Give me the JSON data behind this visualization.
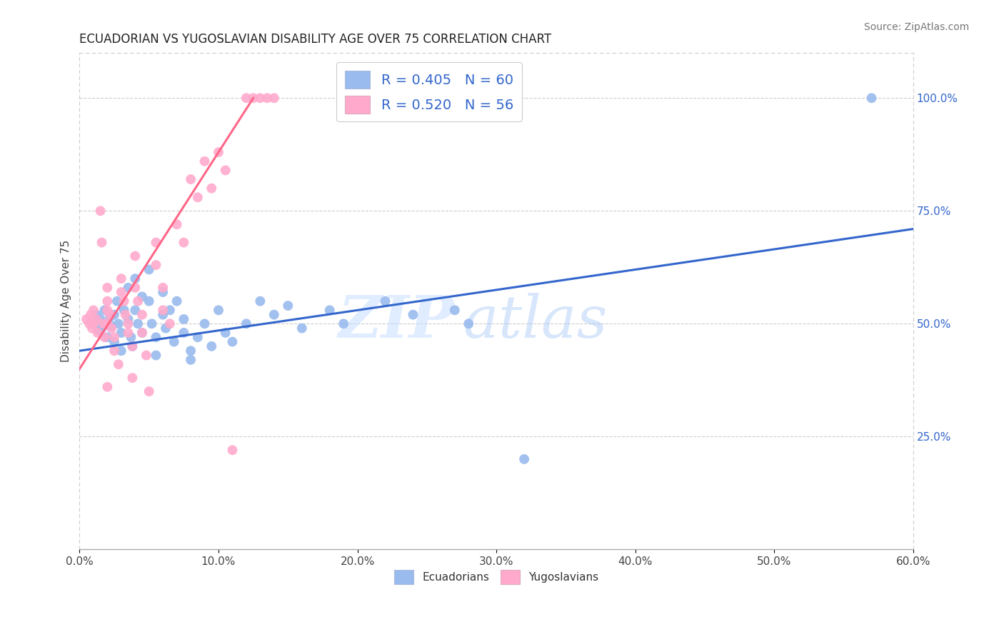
{
  "title": "ECUADORIAN VS YUGOSLAVIAN DISABILITY AGE OVER 75 CORRELATION CHART",
  "source": "Source: ZipAtlas.com",
  "ylabel": "Disability Age Over 75",
  "xlim": [
    0.0,
    60.0
  ],
  "ylim": [
    0.0,
    110.0
  ],
  "xtick_labels": [
    "0.0%",
    "10.0%",
    "20.0%",
    "30.0%",
    "40.0%",
    "50.0%",
    "60.0%"
  ],
  "xtick_vals": [
    0.0,
    10.0,
    20.0,
    30.0,
    40.0,
    50.0,
    60.0
  ],
  "ytick_labels_right": [
    "25.0%",
    "50.0%",
    "75.0%",
    "100.0%"
  ],
  "ytick_vals_right": [
    25.0,
    50.0,
    75.0,
    100.0
  ],
  "blue_color": "#99BBEE",
  "pink_color": "#FFAACC",
  "blue_line_color": "#3366CC",
  "pink_line_color": "#FF6688",
  "blue_r": "0.405",
  "blue_n": "60",
  "pink_r": "0.520",
  "pink_n": "56",
  "legend_r_color": "#3366CC",
  "watermark_zip": "ZIP",
  "watermark_atlas": "atlas",
  "background_color": "#FFFFFF",
  "ecuadorians": [
    [
      1.0,
      50.0
    ],
    [
      1.2,
      52.0
    ],
    [
      1.4,
      48.5
    ],
    [
      1.5,
      51.0
    ],
    [
      1.6,
      49.0
    ],
    [
      1.8,
      53.0
    ],
    [
      2.0,
      50.0
    ],
    [
      2.0,
      47.0
    ],
    [
      2.2,
      51.5
    ],
    [
      2.3,
      49.5
    ],
    [
      2.5,
      52.0
    ],
    [
      2.5,
      46.0
    ],
    [
      2.7,
      55.0
    ],
    [
      2.8,
      50.0
    ],
    [
      3.0,
      48.0
    ],
    [
      3.0,
      44.0
    ],
    [
      3.2,
      53.0
    ],
    [
      3.5,
      58.0
    ],
    [
      3.5,
      51.0
    ],
    [
      3.7,
      47.0
    ],
    [
      3.8,
      45.0
    ],
    [
      4.0,
      60.0
    ],
    [
      4.0,
      53.0
    ],
    [
      4.2,
      50.0
    ],
    [
      4.5,
      56.0
    ],
    [
      4.5,
      48.0
    ],
    [
      5.0,
      62.0
    ],
    [
      5.0,
      55.0
    ],
    [
      5.2,
      50.0
    ],
    [
      5.5,
      47.0
    ],
    [
      5.5,
      43.0
    ],
    [
      6.0,
      57.0
    ],
    [
      6.0,
      52.0
    ],
    [
      6.2,
      49.0
    ],
    [
      6.5,
      53.0
    ],
    [
      6.8,
      46.0
    ],
    [
      7.0,
      55.0
    ],
    [
      7.5,
      51.0
    ],
    [
      7.5,
      48.0
    ],
    [
      8.0,
      44.0
    ],
    [
      8.0,
      42.0
    ],
    [
      8.5,
      47.0
    ],
    [
      9.0,
      50.0
    ],
    [
      9.5,
      45.0
    ],
    [
      10.0,
      53.0
    ],
    [
      10.5,
      48.0
    ],
    [
      11.0,
      46.0
    ],
    [
      12.0,
      50.0
    ],
    [
      13.0,
      55.0
    ],
    [
      14.0,
      52.0
    ],
    [
      15.0,
      54.0
    ],
    [
      16.0,
      49.0
    ],
    [
      18.0,
      53.0
    ],
    [
      19.0,
      50.0
    ],
    [
      22.0,
      55.0
    ],
    [
      24.0,
      52.0
    ],
    [
      27.0,
      53.0
    ],
    [
      28.0,
      50.0
    ],
    [
      32.0,
      20.0
    ],
    [
      57.0,
      100.0
    ]
  ],
  "yugoslavians": [
    [
      0.5,
      51.0
    ],
    [
      0.7,
      50.0
    ],
    [
      0.8,
      52.0
    ],
    [
      0.9,
      49.0
    ],
    [
      1.0,
      53.0
    ],
    [
      1.0,
      50.0
    ],
    [
      1.2,
      51.0
    ],
    [
      1.3,
      48.0
    ],
    [
      1.5,
      75.0
    ],
    [
      1.6,
      68.0
    ],
    [
      1.7,
      50.0
    ],
    [
      1.8,
      47.0
    ],
    [
      2.0,
      58.0
    ],
    [
      2.0,
      55.0
    ],
    [
      2.0,
      53.0
    ],
    [
      2.0,
      50.0
    ],
    [
      2.2,
      52.0
    ],
    [
      2.3,
      49.0
    ],
    [
      2.5,
      47.0
    ],
    [
      2.5,
      44.0
    ],
    [
      2.8,
      41.0
    ],
    [
      3.0,
      60.0
    ],
    [
      3.0,
      57.0
    ],
    [
      3.2,
      55.0
    ],
    [
      3.3,
      52.0
    ],
    [
      3.5,
      50.0
    ],
    [
      3.5,
      48.0
    ],
    [
      3.8,
      45.0
    ],
    [
      3.8,
      38.0
    ],
    [
      4.0,
      65.0
    ],
    [
      4.0,
      58.0
    ],
    [
      4.2,
      55.0
    ],
    [
      4.5,
      52.0
    ],
    [
      4.5,
      48.0
    ],
    [
      4.8,
      43.0
    ],
    [
      5.0,
      35.0
    ],
    [
      5.5,
      68.0
    ],
    [
      5.5,
      63.0
    ],
    [
      6.0,
      58.0
    ],
    [
      6.0,
      53.0
    ],
    [
      6.5,
      50.0
    ],
    [
      7.0,
      72.0
    ],
    [
      7.5,
      68.0
    ],
    [
      8.0,
      82.0
    ],
    [
      8.5,
      78.0
    ],
    [
      9.0,
      86.0
    ],
    [
      9.5,
      80.0
    ],
    [
      10.0,
      88.0
    ],
    [
      10.5,
      84.0
    ],
    [
      11.0,
      22.0
    ],
    [
      12.0,
      100.0
    ],
    [
      12.5,
      100.0
    ],
    [
      13.0,
      100.0
    ],
    [
      13.5,
      100.0
    ],
    [
      14.0,
      100.0
    ],
    [
      2.0,
      36.0
    ]
  ],
  "blue_trend_x": [
    0.0,
    60.0
  ],
  "blue_trend_y": [
    44.0,
    71.0
  ],
  "pink_trend_x": [
    0.0,
    12.5
  ],
  "pink_trend_y": [
    40.0,
    100.0
  ]
}
